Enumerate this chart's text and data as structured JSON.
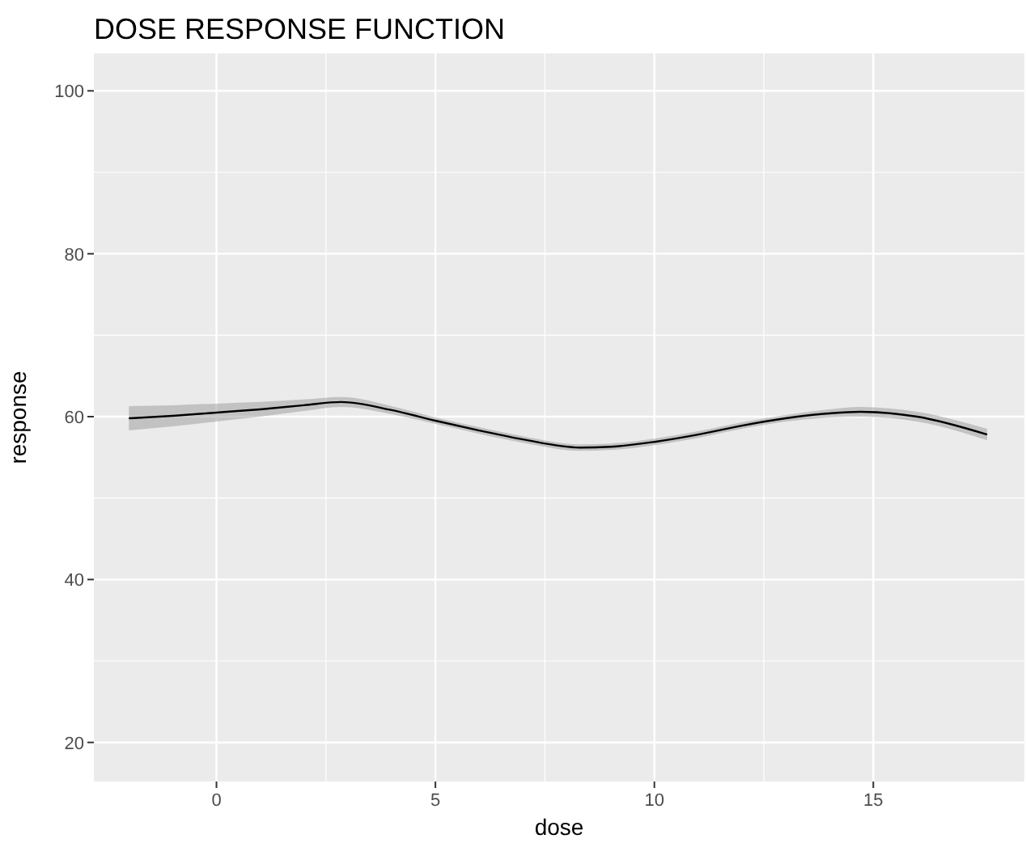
{
  "chart_data": {
    "type": "line",
    "title": "DOSE RESPONSE FUNCTION",
    "xlabel": "dose",
    "ylabel": "response",
    "xlim": [
      -2.8,
      18.45
    ],
    "ylim": [
      15.2,
      104.6
    ],
    "xticks": [
      0,
      5,
      10,
      15
    ],
    "yticks": [
      20,
      40,
      60,
      80,
      100
    ],
    "grid": true,
    "series": [
      {
        "color": "#000000",
        "x": [
          -2,
          -1,
          0,
          1,
          2,
          2.85,
          4,
          5,
          6,
          7,
          8.3,
          9,
          10,
          11,
          12,
          13,
          14,
          14.7,
          16,
          17.6
        ],
        "values": [
          59.8,
          60.1,
          60.5,
          60.9,
          61.4,
          61.8,
          60.8,
          59.5,
          58.3,
          57.2,
          56.2,
          56.3,
          56.9,
          57.8,
          58.9,
          59.8,
          60.4,
          60.6,
          60.0,
          57.8
        ],
        "lower": [
          58.3,
          58.8,
          59.4,
          60.0,
          60.7,
          61.2,
          60.3,
          59.1,
          57.9,
          56.8,
          55.8,
          55.9,
          56.5,
          57.4,
          58.5,
          59.4,
          59.9,
          60.0,
          59.4,
          57.1
        ],
        "upper": [
          61.3,
          61.4,
          61.6,
          61.8,
          62.1,
          62.4,
          61.3,
          59.9,
          58.7,
          57.6,
          56.6,
          56.7,
          57.3,
          58.2,
          59.3,
          60.2,
          60.9,
          61.2,
          60.6,
          58.5
        ]
      }
    ]
  }
}
